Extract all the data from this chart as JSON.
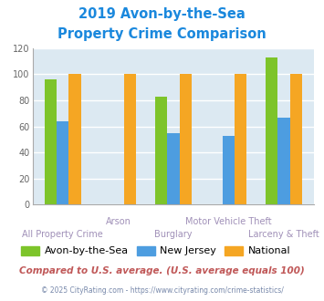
{
  "title_line1": "2019 Avon-by-the-Sea",
  "title_line2": "Property Crime Comparison",
  "categories": [
    "All Property Crime",
    "Arson",
    "Burglary",
    "Motor Vehicle Theft",
    "Larceny & Theft"
  ],
  "series": {
    "Avon-by-the-Sea": [
      96,
      0,
      83,
      0,
      113
    ],
    "New Jersey": [
      64,
      0,
      55,
      53,
      67
    ],
    "National": [
      100,
      100,
      100,
      100,
      100
    ]
  },
  "colors": {
    "Avon-by-the-Sea": "#7dc42a",
    "New Jersey": "#4d9de0",
    "National": "#f5a623"
  },
  "ylim": [
    0,
    120
  ],
  "yticks": [
    0,
    20,
    40,
    60,
    80,
    100,
    120
  ],
  "xlabel_color": "#a090b8",
  "title_color": "#1a88dd",
  "footnote1": "Compared to U.S. average. (U.S. average equals 100)",
  "footnote2": "© 2025 CityRating.com - https://www.cityrating.com/crime-statistics/",
  "footnote1_color": "#c05858",
  "footnote2_color": "#7788aa",
  "bg_color": "#dce9f2",
  "fig_bg": "#ffffff",
  "grid_color": "#ffffff"
}
